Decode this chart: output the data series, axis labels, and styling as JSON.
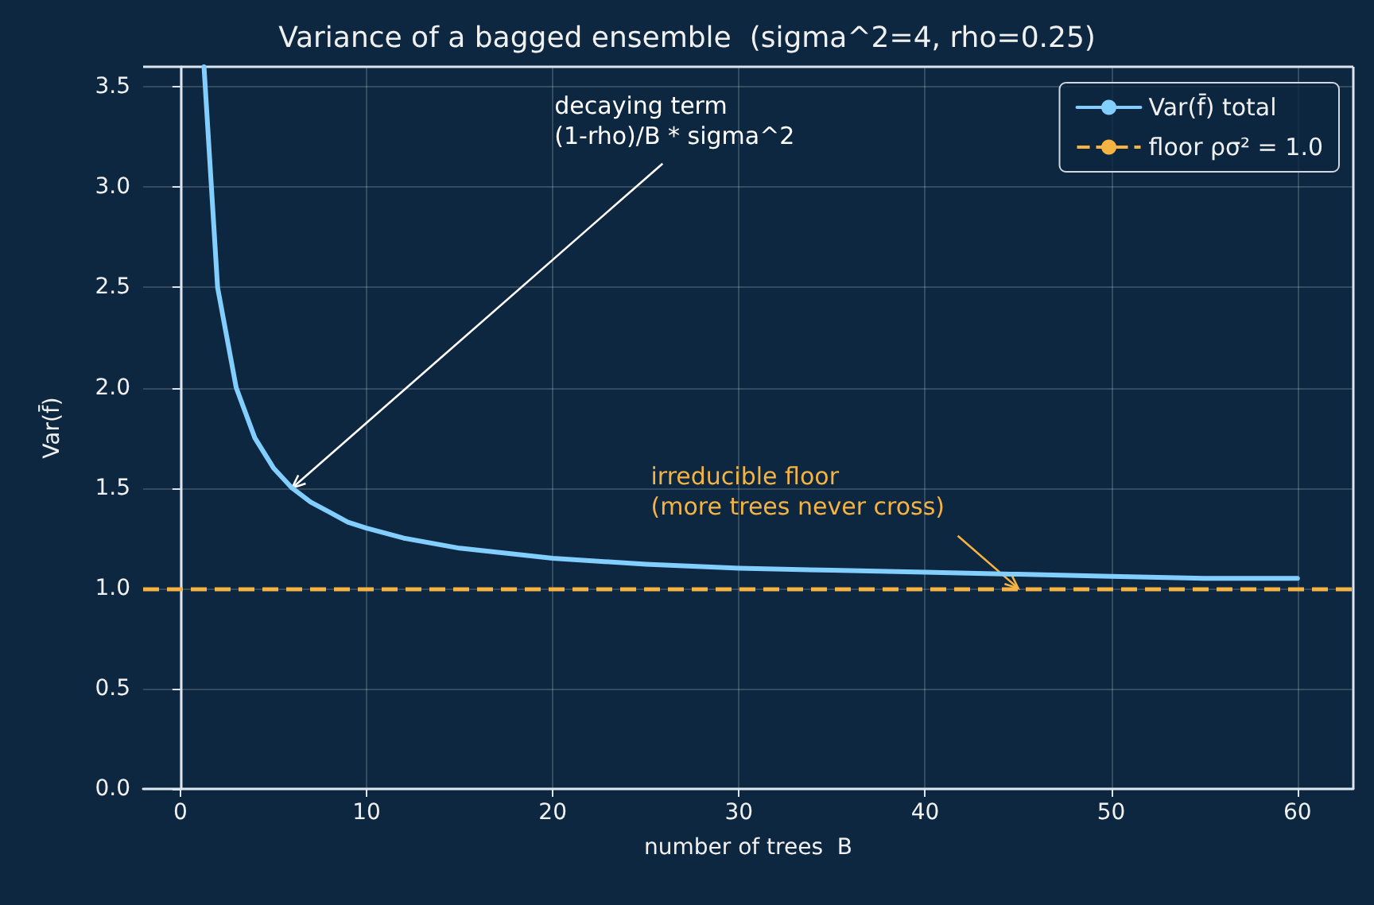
{
  "chart_data": {
    "type": "line",
    "title": "Variance of a bagged ensemble  (sigma^2=4, rho=0.25)",
    "xlabel": "number of trees  B",
    "ylabel": "Var(f̄)",
    "x": [
      1.27,
      2,
      3,
      4,
      5,
      6,
      7,
      8,
      9,
      10,
      12,
      15,
      20,
      25,
      30,
      35,
      40,
      45,
      50,
      55,
      60
    ],
    "series": [
      {
        "name": "Var(f̄) total",
        "color": "#82cfff",
        "values": [
          3.6,
          2.5,
          2.0,
          1.75,
          1.6,
          1.5,
          1.43,
          1.38,
          1.33,
          1.3,
          1.25,
          1.2,
          1.15,
          1.12,
          1.1,
          1.09,
          1.08,
          1.07,
          1.06,
          1.05,
          1.05
        ]
      }
    ],
    "ref_lines": [
      {
        "axis": "y",
        "value": 1.0,
        "label": "floor ρσ² = 1.0",
        "color": "#f5b342",
        "line_style": "dashed"
      }
    ],
    "annotations": [
      {
        "text": "decaying term\n(1-rho)/B * sigma^2",
        "x": 6,
        "y": 1.5
      },
      {
        "text": "irreducible floor\n(more trees never cross)",
        "x": 45,
        "y": 1.0
      }
    ],
    "xlim": [
      -2,
      63
    ],
    "xticks": [
      0,
      10,
      20,
      30,
      40,
      50,
      60
    ],
    "ylim": [
      0,
      3.6
    ],
    "yticks": [
      {
        "value": 0,
        "label": "0.0"
      },
      0.5,
      {
        "value": 1,
        "label": "1.0"
      },
      1.5,
      {
        "value": 2,
        "label": "2.0"
      },
      2.5,
      {
        "value": 3,
        "label": "3.0"
      },
      3.5
    ],
    "grid": true,
    "legend": "top right",
    "marker": "none",
    "line_style": "solid"
  }
}
